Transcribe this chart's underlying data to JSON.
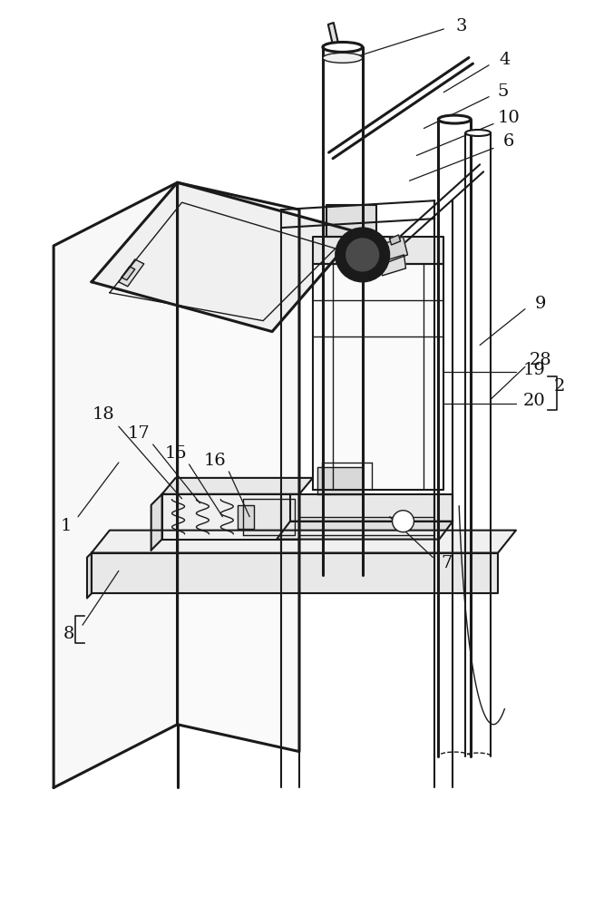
{
  "bg_color": "#ffffff",
  "line_color": "#1a1a1a",
  "lw_thin": 1.0,
  "lw_med": 1.5,
  "lw_thick": 2.2,
  "fig_width": 6.55,
  "fig_height": 10.0
}
